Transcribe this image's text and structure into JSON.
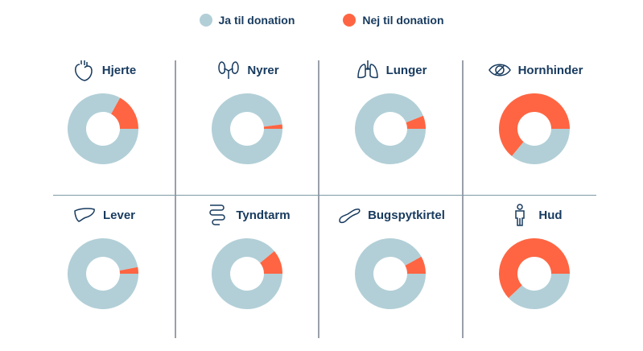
{
  "colors": {
    "ja": "#b2cfd7",
    "nej": "#ff6542",
    "text": "#173a5e"
  },
  "chart_data": {
    "type": "pie",
    "variant": "donut",
    "legend": {
      "position": "top",
      "entries": [
        "Ja til donation",
        "Nej til donation"
      ]
    },
    "series_names": [
      "Ja til donation",
      "Nej til donation"
    ],
    "categories": [
      "Hjerte",
      "Nyrer",
      "Lunger",
      "Hornhinder",
      "Lever",
      "Tyndtarm",
      "Bugspytkirtel",
      "Hud"
    ],
    "icons": [
      "heart-icon",
      "kidneys-icon",
      "lungs-icon",
      "eye-icon",
      "liver-icon",
      "intestine-icon",
      "pancreas-icon",
      "person-icon"
    ],
    "nej_percent": [
      17,
      2,
      6,
      64,
      3,
      11,
      8,
      62
    ],
    "ja_percent": [
      83,
      98,
      94,
      36,
      97,
      89,
      92,
      38
    ]
  }
}
